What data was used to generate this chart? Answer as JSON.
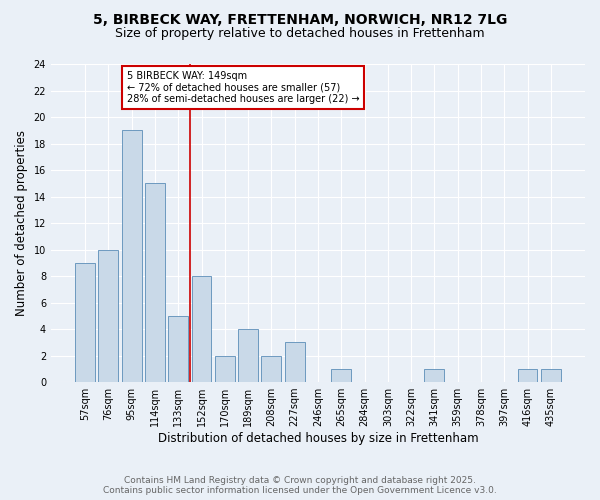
{
  "title_line1": "5, BIRBECK WAY, FRETTENHAM, NORWICH, NR12 7LG",
  "title_line2": "Size of property relative to detached houses in Frettenham",
  "xlabel": "Distribution of detached houses by size in Frettenham",
  "ylabel": "Number of detached properties",
  "categories": [
    "57sqm",
    "76sqm",
    "95sqm",
    "114sqm",
    "133sqm",
    "152sqm",
    "170sqm",
    "189sqm",
    "208sqm",
    "227sqm",
    "246sqm",
    "265sqm",
    "284sqm",
    "303sqm",
    "322sqm",
    "341sqm",
    "359sqm",
    "378sqm",
    "397sqm",
    "416sqm",
    "435sqm"
  ],
  "values": [
    9,
    10,
    19,
    15,
    5,
    8,
    2,
    4,
    2,
    3,
    0,
    1,
    0,
    0,
    0,
    1,
    0,
    0,
    0,
    1,
    1
  ],
  "bar_color": "#c9d9e8",
  "bar_edge_color": "#5b8db8",
  "vline_x": 4.5,
  "vline_color": "#cc0000",
  "annotation_text": "5 BIRBECK WAY: 149sqm\n← 72% of detached houses are smaller (57)\n28% of semi-detached houses are larger (22) →",
  "annotation_box_color": "#ffffff",
  "annotation_box_edge_color": "#cc0000",
  "ylim": [
    0,
    24
  ],
  "yticks": [
    0,
    2,
    4,
    6,
    8,
    10,
    12,
    14,
    16,
    18,
    20,
    22,
    24
  ],
  "footer_line1": "Contains HM Land Registry data © Crown copyright and database right 2025.",
  "footer_line2": "Contains public sector information licensed under the Open Government Licence v3.0.",
  "background_color": "#eaf0f7",
  "plot_bg_color": "#eaf0f7",
  "title_fontsize": 10,
  "subtitle_fontsize": 9,
  "tick_fontsize": 7,
  "label_fontsize": 8.5,
  "footer_fontsize": 6.5,
  "annotation_fontsize": 7
}
